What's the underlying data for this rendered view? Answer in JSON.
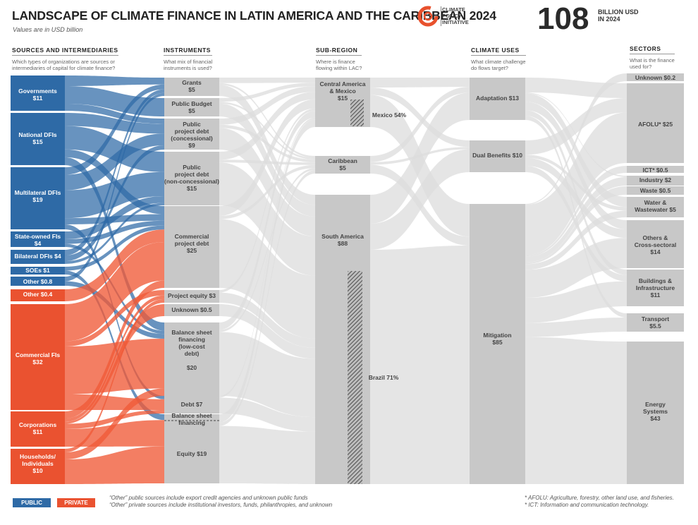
{
  "header": {
    "title": "LANDSCAPE OF CLIMATE FINANCE IN LATIN AMERICA AND THE CARIBBEAN 2024",
    "subtitle": "Values are in USD billion",
    "logo_lines": [
      "CLIMATE",
      "POLICY",
      "INITIATIVE"
    ],
    "total_value": "108",
    "total_unit_lines": [
      "BILLION USD",
      "IN 2024"
    ]
  },
  "columns": {
    "sources": {
      "heading": "SOURCES AND INTERMEDIARIES",
      "question": [
        "Which types of organizations are sources or",
        "intermediaries of capital for climate finance?"
      ]
    },
    "instruments": {
      "heading": "INSTRUMENTS",
      "question": [
        "What mix of financial",
        "instruments is used?"
      ]
    },
    "subregion": {
      "heading": "SUB-REGION",
      "question": [
        "Where is finance",
        "flowing within LAC?"
      ]
    },
    "uses": {
      "heading": "CLIMATE USES",
      "question": [
        "What climate challenge",
        "do flows target?"
      ]
    },
    "sectors": {
      "heading": "SECTORS",
      "question": [
        "What is the finance",
        "used for?"
      ]
    }
  },
  "colors": {
    "public": "#2e6aa6",
    "private": "#ea5230",
    "public_flow": "#2e6aa6",
    "private_flow": "#ef5a37",
    "gray_node": "#c8c8c8",
    "gray_flow": "#dcdcdc"
  },
  "sources": [
    {
      "label": "Governments\n$11",
      "kind": "public"
    },
    {
      "label": "National DFIs\n$15",
      "kind": "public"
    },
    {
      "label": "Multilateral DFIs\n$19",
      "kind": "public"
    },
    {
      "label": "State-owned FIs\n$4",
      "kind": "public"
    },
    {
      "label": "Bilateral DFIs $4",
      "kind": "public"
    },
    {
      "label": "SOEs $1",
      "kind": "public"
    },
    {
      "label": "Other $0.8",
      "kind": "public"
    },
    {
      "label": "Other $0.4",
      "kind": "private"
    },
    {
      "label": "Commercial FIs\n$32",
      "kind": "private"
    },
    {
      "label": "Corporations\n$11",
      "kind": "private"
    },
    {
      "label": "Households/\nIndividuals\n$10",
      "kind": "private"
    }
  ],
  "instruments": [
    {
      "label": "Grants\n$5"
    },
    {
      "label": "Public Budget\n$5"
    },
    {
      "label": "Public\nproject debt\n(concessional)\n$9"
    },
    {
      "label": "Public\nproject debt\n(non-concessional)\n$15"
    },
    {
      "label": "Commercial\nproject debt\n$25"
    },
    {
      "label": "Project equity $3"
    },
    {
      "label": "Unknown $0.5"
    },
    {
      "label": "Balance sheet\nfinancing\n(low-cost\ndebt)\n\n$20"
    },
    {
      "label": "Debt $7"
    },
    {
      "label": "Balance sheet\nfinancing"
    },
    {
      "label": "Equity $19"
    }
  ],
  "subregions": [
    {
      "label": "Central America\n& Mexico\n$15",
      "share_label": "Mexico 54%"
    },
    {
      "label": "Caribbean\n$5"
    },
    {
      "label": "South America\n$88",
      "share_label": "Brazil 71%"
    }
  ],
  "uses": [
    {
      "label": "Adaptation $13"
    },
    {
      "label": "Dual Benefits $10"
    },
    {
      "label": "Mitigation\n$85"
    }
  ],
  "sectors": [
    {
      "label": "Unknown $0.2"
    },
    {
      "label": "AFOLU* $25"
    },
    {
      "label": "ICT* $0.5"
    },
    {
      "label": "Industry $2"
    },
    {
      "label": "Waste $0.5"
    },
    {
      "label": "Water &\nWastewater $5"
    },
    {
      "label": "Others &\nCross-sectoral\n$14"
    },
    {
      "label": "Buildings &\nInfrastructure\n$11"
    },
    {
      "label": "Transport\n$5.5"
    },
    {
      "label": "Energy\nSystems\n$43"
    }
  ],
  "legend": {
    "public": "PUBLIC",
    "private": "PRIVATE",
    "notes": [
      "“Other” public sources include export credit agencies and unknown public funds",
      "“Other” private sources include institutional investors, funds, philanthropies, and unknown"
    ],
    "footnotes": [
      "*  AFOLU: Agriculture, forestry, other land use, and fisheries.",
      "*  ICT: Information and communication technology."
    ]
  }
}
